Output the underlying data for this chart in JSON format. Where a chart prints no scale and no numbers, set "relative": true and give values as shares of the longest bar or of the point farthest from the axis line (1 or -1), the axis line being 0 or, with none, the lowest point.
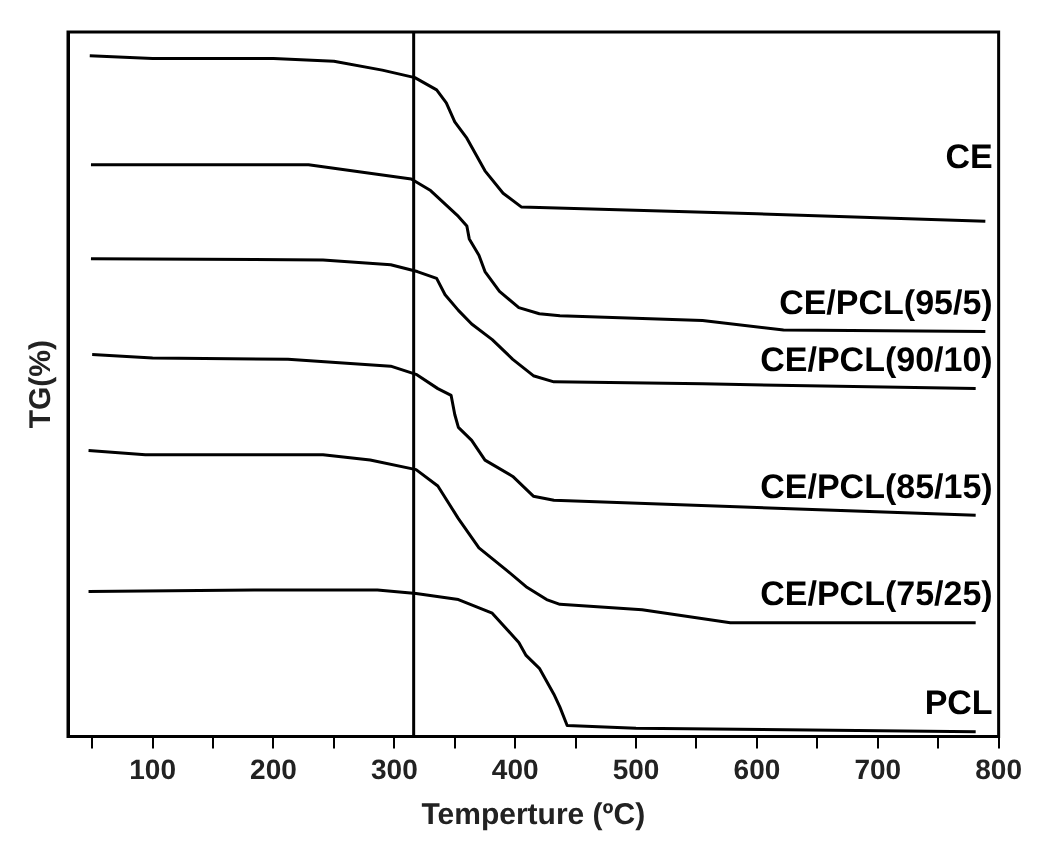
{
  "chart_data": {
    "type": "line",
    "xlabel": "Temperture (ºC)",
    "ylabel": "TG(%)",
    "relative": true,
    "xlim": [
      30,
      800
    ],
    "xticks": [
      {
        "value": 50,
        "label": null
      },
      100,
      {
        "value": 150,
        "label": null
      },
      200,
      {
        "value": 250,
        "label": null
      },
      300,
      {
        "value": 350,
        "label": null
      },
      400,
      {
        "value": 450,
        "label": null
      },
      500,
      {
        "value": 550,
        "label": null
      },
      600,
      {
        "value": 650,
        "label": null
      },
      700,
      {
        "value": 750,
        "label": null
      },
      800
    ],
    "grid": false,
    "legend": false,
    "marker": "none",
    "line_style": "solid",
    "ref_lines": [
      {
        "axis": "x",
        "value": 316,
        "color": "#000000"
      }
    ],
    "series": [
      {
        "name": "CE",
        "color": "#000000",
        "x": [
          48,
          100,
          200,
          250,
          290,
          317,
          335,
          343,
          350,
          360,
          375,
          390,
          405,
          420,
          600,
          789
        ],
        "values": [
          1.0,
          0.996,
          0.996,
          0.992,
          0.979,
          0.968,
          0.95,
          0.931,
          0.903,
          0.879,
          0.831,
          0.798,
          0.778,
          0.777,
          0.768,
          0.757
        ]
      },
      {
        "name": "CE/PCL(95/5)",
        "color": "#000000",
        "x": [
          49,
          229,
          314,
          330,
          353,
          360,
          362,
          370,
          375,
          387,
          403,
          420,
          437,
          555,
          622,
          789
        ],
        "values": [
          0.84,
          0.84,
          0.819,
          0.802,
          0.764,
          0.75,
          0.731,
          0.707,
          0.683,
          0.654,
          0.63,
          0.621,
          0.618,
          0.611,
          0.597,
          0.595
        ]
      },
      {
        "name": "CE/PCL(90/10)",
        "color": "#000000",
        "x": [
          49,
          241,
          297,
          319,
          335,
          342,
          353,
          364,
          381,
          398,
          415,
          432,
          555,
          781
        ],
        "values": [
          0.702,
          0.7,
          0.693,
          0.683,
          0.673,
          0.649,
          0.626,
          0.606,
          0.583,
          0.554,
          0.53,
          0.521,
          0.518,
          0.511
        ]
      },
      {
        "name": "CE/PCL(85/15)",
        "color": "#000000",
        "x": [
          50,
          100,
          212,
          297,
          318,
          336,
          347,
          350,
          353,
          364,
          375,
          398,
          415,
          432,
          589,
          781
        ],
        "values": [
          0.561,
          0.556,
          0.554,
          0.544,
          0.532,
          0.511,
          0.501,
          0.473,
          0.454,
          0.435,
          0.406,
          0.382,
          0.353,
          0.347,
          0.337,
          0.325
        ]
      },
      {
        "name": "CE/PCL(75/25)",
        "color": "#000000",
        "x": [
          47,
          94,
          241,
          280,
          318,
          336,
          353,
          370,
          393,
          409,
          426,
          437,
          505,
          578,
          781
        ],
        "values": [
          0.42,
          0.414,
          0.414,
          0.406,
          0.392,
          0.368,
          0.32,
          0.277,
          0.244,
          0.22,
          0.201,
          0.194,
          0.186,
          0.167,
          0.167
        ]
      },
      {
        "name": "PCL",
        "color": "#000000",
        "x": [
          47,
          184,
          286,
          318,
          353,
          381,
          403,
          409,
          420,
          432,
          437,
          443,
          500,
          781
        ],
        "values": [
          0.213,
          0.215,
          0.215,
          0.21,
          0.201,
          0.181,
          0.138,
          0.119,
          0.1,
          0.062,
          0.043,
          0.016,
          0.012,
          0.007
        ]
      }
    ]
  }
}
